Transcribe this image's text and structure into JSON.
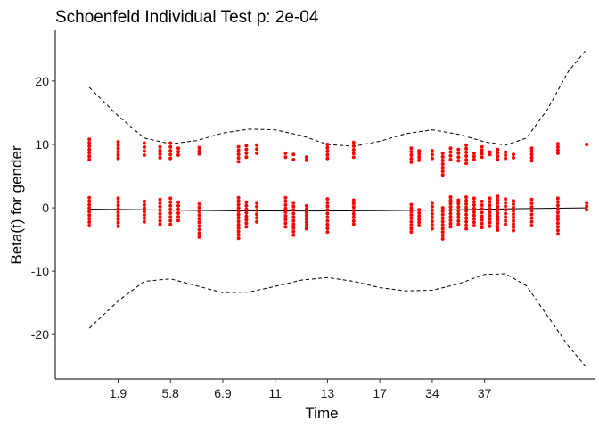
{
  "chart_data": {
    "type": "scatter",
    "title": "Schoenfeld Individual Test p: 2e-04",
    "xlabel": "Time",
    "ylabel": "Beta(t) for gender",
    "x_tick_labels": [
      "1.9",
      "5.8",
      "6.9",
      "11",
      "13",
      "17",
      "34",
      "37"
    ],
    "y_ticks": [
      -20,
      -10,
      0,
      10,
      20
    ],
    "ylim": [
      -27,
      28
    ],
    "xlim": [
      -0.2,
      10.1
    ],
    "x_scale": "transformed (tick labels are time values at positions 1..8)",
    "grid": false,
    "legend": "none",
    "colors": {
      "points": "#ff0000",
      "fit": "#000000",
      "band": "#000000"
    },
    "series": [
      {
        "type": "points",
        "columns": [
          {
            "x": 0.45,
            "upper": [
              10.8,
              7.6
            ],
            "lower": [
              1.6,
              -2.8
            ]
          },
          {
            "x": 1.0,
            "upper": [
              10.4,
              7.8
            ],
            "lower": [
              1.5,
              -2.9
            ]
          },
          {
            "x": 1.5,
            "upper": [
              10.2,
              8.3
            ],
            "lower": [
              1.0,
              -2.2
            ]
          },
          {
            "x": 1.8,
            "upper": [
              9.6,
              7.9
            ],
            "lower": [
              1.3,
              -2.6
            ]
          },
          {
            "x": 2.0,
            "upper": [
              10.2,
              7.8
            ],
            "lower": [
              1.5,
              -2.6
            ]
          },
          {
            "x": 2.15,
            "upper": [
              9.4,
              8.3
            ],
            "lower": [
              0.9,
              -2.0
            ]
          },
          {
            "x": 2.55,
            "upper": [
              9.5,
              8.5
            ],
            "lower": [
              0.6,
              -4.6
            ]
          },
          {
            "x": 3.3,
            "upper": [
              9.6,
              7.3
            ],
            "lower": [
              1.6,
              -4.8
            ]
          },
          {
            "x": 3.45,
            "upper": [
              9.8,
              8.0
            ],
            "lower": [
              0.9,
              -3.0
            ]
          },
          {
            "x": 3.65,
            "upper": [
              9.9,
              8.6
            ],
            "lower": [
              0.8,
              -2.2
            ]
          },
          {
            "x": 4.2,
            "upper": [
              8.6,
              8.0
            ],
            "lower": [
              1.6,
              -3.0
            ]
          },
          {
            "x": 4.35,
            "upper": [
              8.4,
              7.6
            ],
            "lower": [
              0.8,
              -4.3
            ]
          },
          {
            "x": 4.6,
            "upper": [
              8.0,
              7.5
            ],
            "lower": [
              0.3,
              -3.3
            ]
          },
          {
            "x": 5.0,
            "upper": [
              10.0,
              7.8
            ],
            "lower": [
              1.4,
              -3.8
            ]
          },
          {
            "x": 5.5,
            "upper": [
              10.3,
              8.0
            ],
            "lower": [
              1.2,
              -2.6
            ]
          },
          {
            "x": 6.6,
            "upper": [
              9.4,
              7.2
            ],
            "lower": [
              0.5,
              -3.8
            ]
          },
          {
            "x": 6.75,
            "upper": [
              9.0,
              7.5
            ],
            "lower": [
              -0.3,
              -2.8
            ]
          },
          {
            "x": 7.0,
            "upper": [
              9.0,
              7.8
            ],
            "lower": [
              0.8,
              -3.3
            ]
          },
          {
            "x": 7.2,
            "upper": [
              8.6,
              5.2
            ],
            "lower": [
              0.0,
              -4.9
            ]
          },
          {
            "x": 7.35,
            "upper": [
              9.4,
              7.6
            ],
            "lower": [
              1.7,
              -3.0
            ]
          },
          {
            "x": 7.5,
            "upper": [
              9.2,
              7.4
            ],
            "lower": [
              1.2,
              -2.6
            ]
          },
          {
            "x": 7.65,
            "upper": [
              9.9,
              7.0
            ],
            "lower": [
              1.7,
              -3.3
            ]
          },
          {
            "x": 7.8,
            "upper": [
              8.6,
              7.6
            ],
            "lower": [
              1.5,
              -2.8
            ]
          },
          {
            "x": 7.95,
            "upper": [
              9.6,
              8.0
            ],
            "lower": [
              1.0,
              -3.1
            ]
          },
          {
            "x": 8.1,
            "upper": [
              8.8,
              8.4
            ],
            "lower": [
              1.5,
              -2.9
            ]
          },
          {
            "x": 8.25,
            "upper": [
              9.2,
              7.6
            ],
            "lower": [
              1.8,
              -3.5
            ]
          },
          {
            "x": 8.4,
            "upper": [
              8.8,
              7.8
            ],
            "lower": [
              1.4,
              -2.6
            ]
          },
          {
            "x": 8.55,
            "upper": [
              8.4,
              7.9
            ],
            "lower": [
              1.1,
              -3.6
            ]
          },
          {
            "x": 8.9,
            "upper": [
              9.4,
              7.4
            ],
            "lower": [
              1.3,
              -2.8
            ]
          },
          {
            "x": 9.4,
            "upper": [
              10.1,
              8.6
            ],
            "lower": [
              1.5,
              -4.1
            ]
          },
          {
            "x": 9.95,
            "upper": [
              10.0,
              10.0
            ],
            "lower": [
              0.8,
              -0.3
            ]
          }
        ]
      },
      {
        "type": "line",
        "role": "fit",
        "x": [
          0.45,
          1.5,
          3.0,
          4.5,
          6.0,
          7.5,
          8.5,
          9.95
        ],
        "y": [
          -0.2,
          -0.3,
          -0.45,
          -0.5,
          -0.45,
          -0.3,
          -0.15,
          0.0
        ]
      },
      {
        "type": "line",
        "role": "upper-band",
        "x": [
          0.45,
          1.0,
          1.5,
          2.0,
          2.5,
          3.0,
          3.5,
          4.0,
          4.5,
          5.0,
          5.5,
          6.0,
          6.5,
          7.0,
          7.5,
          8.0,
          8.4,
          8.8,
          9.2,
          9.6,
          9.95
        ],
        "y": [
          19.0,
          14.5,
          11.0,
          10.1,
          10.6,
          11.8,
          12.4,
          12.3,
          11.4,
          10.0,
          9.7,
          10.5,
          11.7,
          12.3,
          11.6,
          10.4,
          9.9,
          11.0,
          15.5,
          21.5,
          25.0
        ]
      },
      {
        "type": "line",
        "role": "lower-band",
        "x": [
          0.45,
          1.0,
          1.5,
          2.0,
          2.5,
          3.0,
          3.5,
          4.0,
          4.5,
          5.0,
          5.5,
          6.0,
          6.5,
          7.0,
          7.5,
          8.0,
          8.4,
          8.8,
          9.2,
          9.6,
          9.95
        ],
        "y": [
          -19.0,
          -14.7,
          -11.6,
          -11.2,
          -12.3,
          -13.4,
          -13.3,
          -12.4,
          -11.4,
          -11.0,
          -11.6,
          -12.6,
          -13.1,
          -13.0,
          -12.0,
          -10.5,
          -10.4,
          -12.3,
          -17.0,
          -21.8,
          -25.2
        ]
      }
    ]
  }
}
